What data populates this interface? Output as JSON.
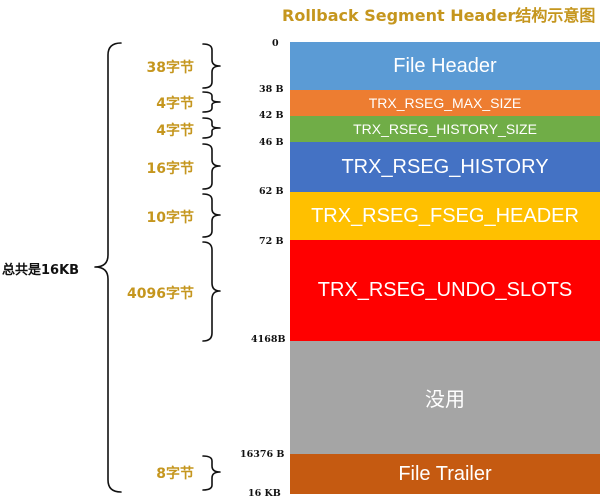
{
  "title": "Rollback Segment Header结构示意图",
  "total_label": "总共是16KB",
  "segments": [
    {
      "name": "File Header",
      "color": "#5b9bd5"
    },
    {
      "name": "TRX_RSEG_MAX_SIZE",
      "color": "#ed7d31"
    },
    {
      "name": "TRX_RSEG_HISTORY_SIZE",
      "color": "#70ad47"
    },
    {
      "name": "TRX_RSEG_HISTORY",
      "color": "#4472c4"
    },
    {
      "name": "TRX_RSEG_FSEG_HEADER",
      "color": "#ffc000"
    },
    {
      "name": "TRX_RSEG_UNDO_SLOTS",
      "color": "#ff0000"
    },
    {
      "name": "没用",
      "color": "#a5a5a5"
    },
    {
      "name": "File Trailer",
      "color": "#c55a11"
    }
  ],
  "offsets": [
    "0",
    "38 B",
    "42 B",
    "46 B",
    "62 B",
    "72 B",
    "4168B",
    "16376 B",
    "16 KB"
  ],
  "sizes": [
    "38字节",
    "4字节",
    "4字节",
    "16字节",
    "10字节",
    "4096字节",
    "8字节"
  ],
  "colors": {
    "label": "#c5961e",
    "text": "#111111"
  }
}
